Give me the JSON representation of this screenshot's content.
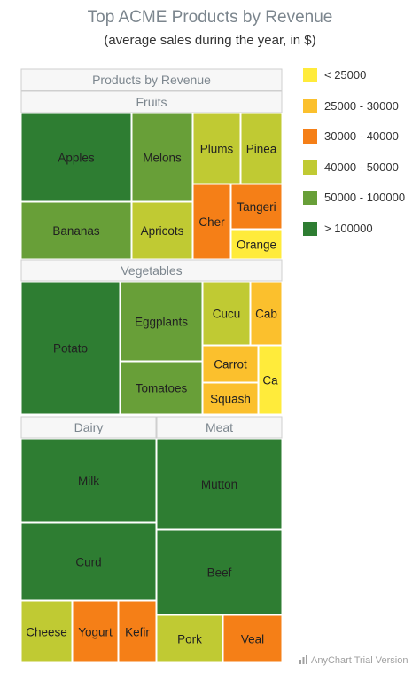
{
  "chart_data": {
    "type": "treemap",
    "title": "Top ACME Products by Revenue",
    "subtitle": "(average sales during the year, in $)",
    "root": "Products by Revenue",
    "legend": {
      "placement": "right",
      "ranges": [
        {
          "label": "< 25000",
          "color": "#ffeb3b"
        },
        {
          "label": "25000 - 30000",
          "color": "#fbc02d"
        },
        {
          "label": "30000 - 40000",
          "color": "#f57f17"
        },
        {
          "label": "40000 - 50000",
          "color": "#c0ca33"
        },
        {
          "label": "50000 - 100000",
          "color": "#689f38"
        },
        {
          "label": "> 100000",
          "color": "#2e7d32"
        }
      ]
    },
    "groups": [
      {
        "name": "Fruits",
        "items": [
          {
            "label": "Apples",
            "range": 5
          },
          {
            "label": "Melons",
            "range": 4
          },
          {
            "label": "Plums",
            "range": 3
          },
          {
            "label": "Pinea",
            "range": 3
          },
          {
            "label": "Bananas",
            "range": 4
          },
          {
            "label": "Apricots",
            "range": 3
          },
          {
            "label": "Cher",
            "range": 2
          },
          {
            "label": "Tangeri",
            "range": 2
          },
          {
            "label": "Orange",
            "range": 0
          }
        ]
      },
      {
        "name": "Vegetables",
        "items": [
          {
            "label": "Potato",
            "range": 5
          },
          {
            "label": "Eggplants",
            "range": 4
          },
          {
            "label": "Cucu",
            "range": 3
          },
          {
            "label": "Cab",
            "range": 1
          },
          {
            "label": "Tomatoes",
            "range": 4
          },
          {
            "label": "Carrot",
            "range": 1
          },
          {
            "label": "Squash",
            "range": 1
          },
          {
            "label": "Ca",
            "range": 0
          }
        ]
      },
      {
        "name": "Dairy",
        "items": [
          {
            "label": "Milk",
            "range": 5
          },
          {
            "label": "Curd",
            "range": 5
          },
          {
            "label": "Cheese",
            "range": 3
          },
          {
            "label": "Yogurt",
            "range": 2
          },
          {
            "label": "Kefir",
            "range": 2
          }
        ]
      },
      {
        "name": "Meat",
        "items": [
          {
            "label": "Mutton",
            "range": 5
          },
          {
            "label": "Beef",
            "range": 5
          },
          {
            "label": "Pork",
            "range": 3
          },
          {
            "label": "Veal",
            "range": 2
          }
        ]
      }
    ]
  },
  "credits": "AnyChart Trial Version"
}
